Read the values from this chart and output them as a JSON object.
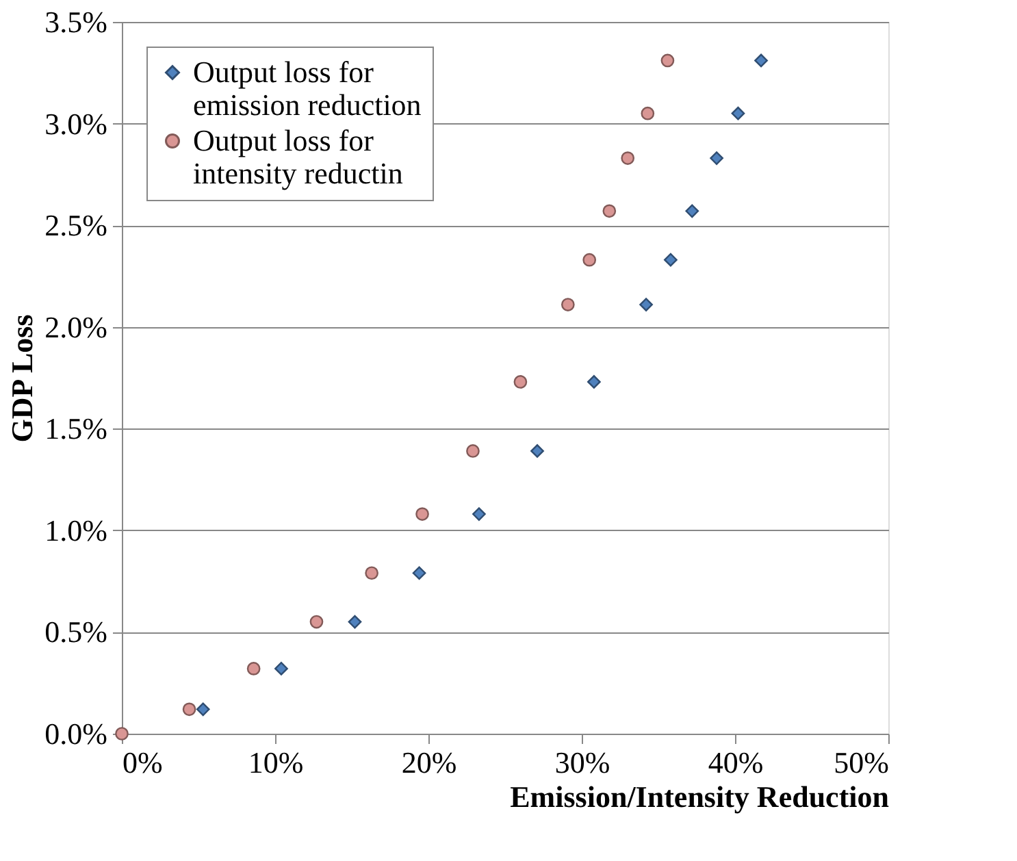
{
  "chart_data": {
    "type": "scatter",
    "xlabel": "Emission/Intensity Reduction",
    "ylabel": "GDP Loss",
    "xlim": [
      0,
      50
    ],
    "xticks": [
      {
        "value": 0,
        "label": "0%"
      },
      {
        "value": 10,
        "label": "10%"
      },
      {
        "value": 20,
        "label": "20%"
      },
      {
        "value": 30,
        "label": "30%"
      },
      {
        "value": 40,
        "label": "40%"
      },
      {
        "value": 50,
        "label": "50%"
      }
    ],
    "ylim": [
      0,
      3.5
    ],
    "yticks": [
      {
        "value": 0,
        "label": "0.0%"
      },
      {
        "value": 0.5,
        "label": "0.5%"
      },
      {
        "value": 1,
        "label": "1.0%"
      },
      {
        "value": 1.5,
        "label": "1.5%"
      },
      {
        "value": 2,
        "label": "2.0%"
      },
      {
        "value": 2.5,
        "label": "2.5%"
      },
      {
        "value": 3,
        "label": "3.0%"
      },
      {
        "value": 3.5,
        "label": "3.5%"
      }
    ],
    "grid": "y",
    "legend": "top left",
    "series": [
      {
        "name": "Output loss for emission reduction",
        "color": "#4f81bd",
        "marker": "diamond",
        "x": [
          5.3,
          10.4,
          15.2,
          19.4,
          23.3,
          27.1,
          30.8,
          34.2,
          35.8,
          37.2,
          38.8,
          40.2,
          41.7
        ],
        "values": [
          0.12,
          0.32,
          0.55,
          0.79,
          1.08,
          1.39,
          1.73,
          2.11,
          2.33,
          2.57,
          2.83,
          3.05,
          3.31
        ]
      },
      {
        "name": "Output loss for intensity reductin",
        "color": "#d99694",
        "marker": "circle",
        "x": [
          0,
          4.4,
          8.6,
          12.7,
          16.3,
          19.6,
          22.9,
          26.0,
          29.1,
          30.5,
          31.8,
          33.0,
          34.3,
          35.6
        ],
        "values": [
          0,
          0.12,
          0.32,
          0.55,
          0.79,
          1.08,
          1.39,
          1.73,
          2.11,
          2.33,
          2.57,
          2.83,
          3.05,
          3.31
        ]
      }
    ]
  }
}
